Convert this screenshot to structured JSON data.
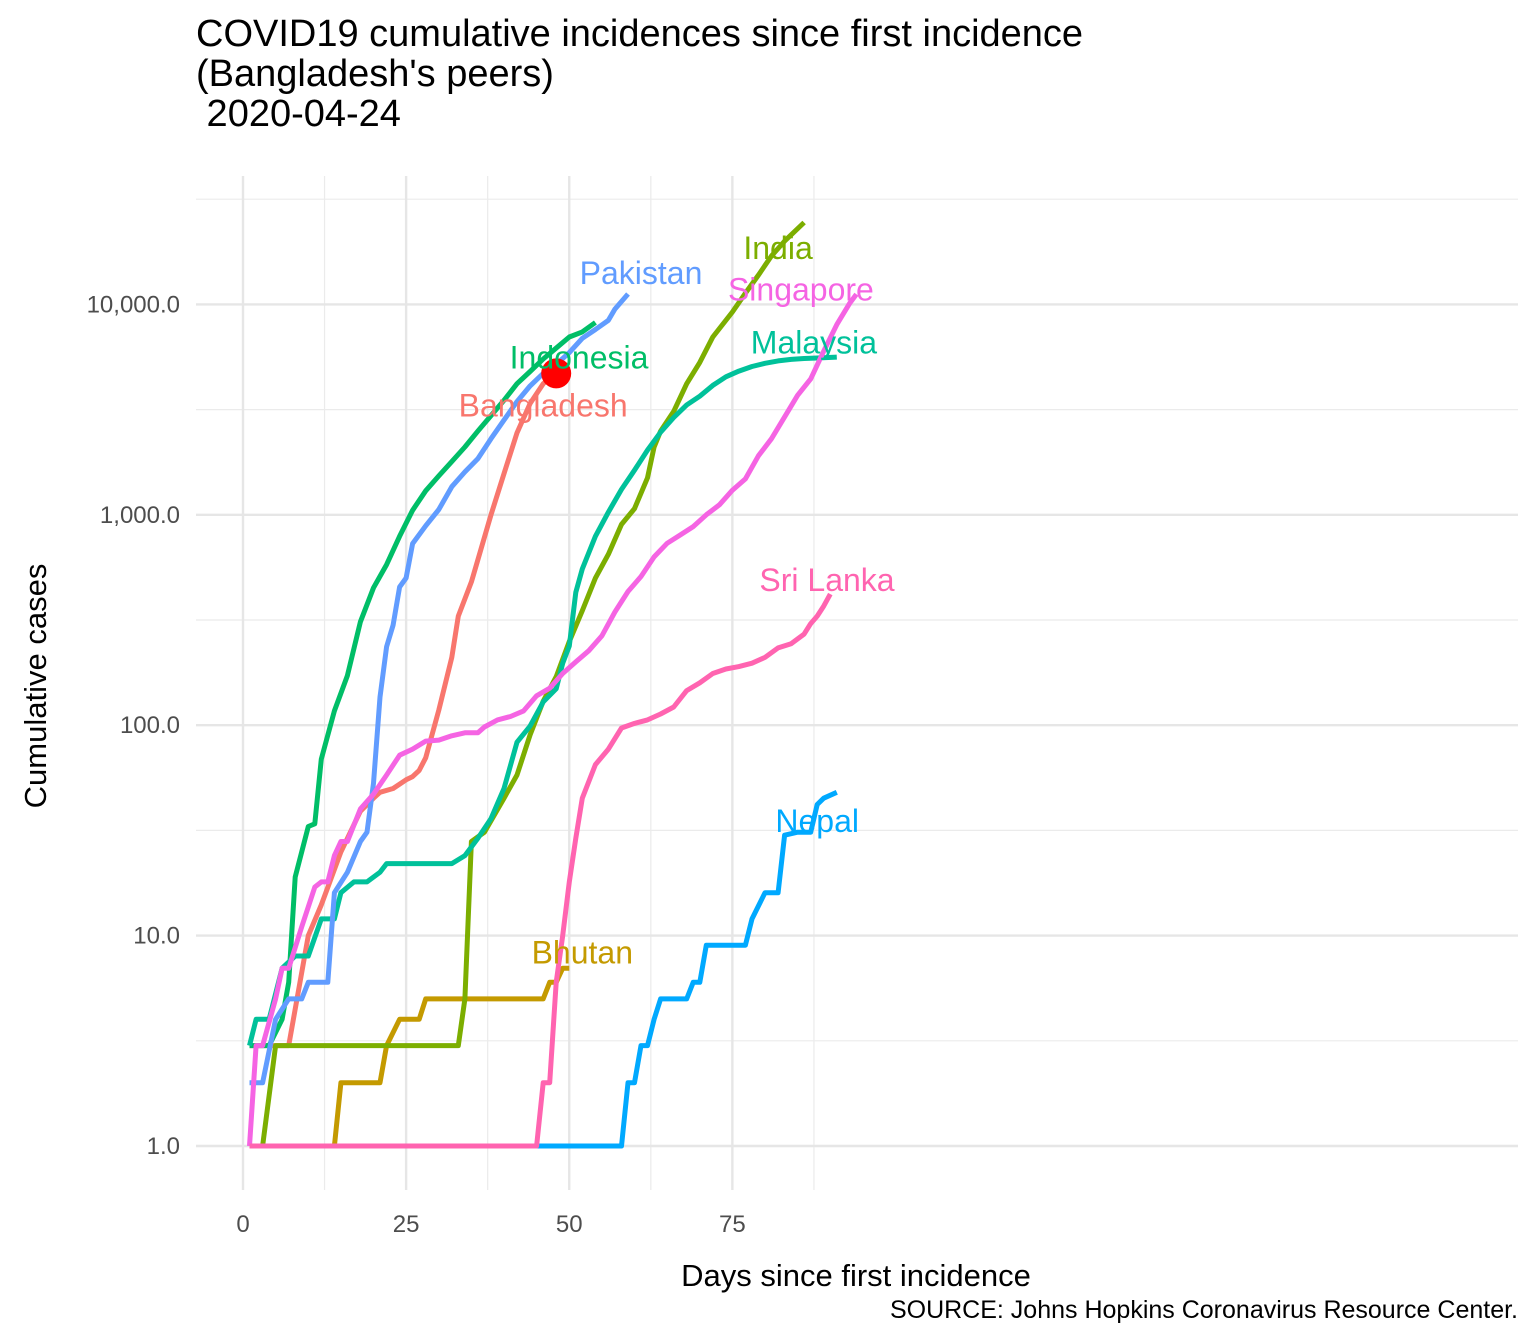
{
  "header": {
    "title_line1": "COVID19 cumulative incidences since first incidence",
    "title_line2": "(Bangladesh's peers)",
    "title_line3": " 2020-04-24"
  },
  "caption": "SOURCE: Johns Hopkins Coronavirus Resource Center.",
  "chart_data": {
    "type": "line",
    "title": "COVID19 cumulative incidences since first incidence (Bangladesh's peers) 2020-04-24",
    "xlabel": "Days since first incidence",
    "ylabel": "Cumulative cases",
    "x_scale": "linear",
    "y_scale": "log10",
    "xlim": [
      -2,
      97
    ],
    "ylim": [
      0.75,
      30000
    ],
    "x_ticks": [
      0,
      25,
      50,
      75
    ],
    "x_tick_labels": [
      "0",
      "25",
      "50",
      "75"
    ],
    "y_ticks": [
      1,
      10,
      100,
      1000,
      10000
    ],
    "y_tick_labels": [
      "1.0",
      "10.0",
      "100.0",
      "1,000.0",
      "10,000.0"
    ],
    "grid": true,
    "legend": "none (direct labels at line ends)",
    "highlight_point": {
      "series": "Bangladesh",
      "x": 48,
      "y": 4700,
      "color": "#ff0000"
    },
    "series": [
      {
        "name": "Bangladesh",
        "color": "#f8766d",
        "label_x": 46,
        "label_y": 3300,
        "points": [
          [
            1,
            3
          ],
          [
            7,
            3
          ],
          [
            10,
            10
          ],
          [
            12,
            14
          ],
          [
            15,
            25
          ],
          [
            18,
            39
          ],
          [
            20,
            45
          ],
          [
            21,
            48
          ],
          [
            23,
            50
          ],
          [
            25,
            55
          ],
          [
            26,
            57
          ],
          [
            27,
            61
          ],
          [
            28,
            70
          ],
          [
            30,
            118
          ],
          [
            32,
            210
          ],
          [
            33,
            330
          ],
          [
            35,
            480
          ],
          [
            38,
            1000
          ],
          [
            40,
            1570
          ],
          [
            42,
            2450
          ],
          [
            44,
            3380
          ],
          [
            46,
            4200
          ],
          [
            48,
            4700
          ]
        ]
      },
      {
        "name": "Bhutan",
        "color": "#c49a00",
        "label_x": 52,
        "label_y": 8.3,
        "points": [
          [
            14,
            1
          ],
          [
            15,
            2
          ],
          [
            21,
            2
          ],
          [
            22,
            3
          ],
          [
            24,
            4
          ],
          [
            27,
            4
          ],
          [
            28,
            5
          ],
          [
            46,
            5
          ],
          [
            47,
            6
          ],
          [
            48,
            6
          ],
          [
            49,
            7
          ],
          [
            50,
            7
          ]
        ]
      },
      {
        "name": "India",
        "color": "#7cae00",
        "label_x": 82,
        "label_y": 18500,
        "points": [
          [
            1,
            1
          ],
          [
            3,
            1
          ],
          [
            5,
            3
          ],
          [
            33,
            3
          ],
          [
            34,
            5
          ],
          [
            35,
            28
          ],
          [
            37,
            31
          ],
          [
            40,
            45
          ],
          [
            42,
            58
          ],
          [
            44,
            90
          ],
          [
            46,
            130
          ],
          [
            48,
            170
          ],
          [
            50,
            250
          ],
          [
            52,
            350
          ],
          [
            54,
            500
          ],
          [
            56,
            650
          ],
          [
            58,
            900
          ],
          [
            60,
            1070
          ],
          [
            62,
            1500
          ],
          [
            63,
            2100
          ],
          [
            64,
            2500
          ],
          [
            66,
            3100
          ],
          [
            68,
            4200
          ],
          [
            70,
            5300
          ],
          [
            72,
            7000
          ],
          [
            75,
            9200
          ],
          [
            77,
            11300
          ],
          [
            79,
            13800
          ],
          [
            81,
            17000
          ],
          [
            83,
            20000
          ],
          [
            86,
            24500
          ]
        ]
      },
      {
        "name": "Indonesia",
        "color": "#00be67",
        "label_x": 51.5,
        "label_y": 5600,
        "points": [
          [
            1,
            3
          ],
          [
            4,
            3
          ],
          [
            6,
            4
          ],
          [
            7,
            6
          ],
          [
            8,
            19
          ],
          [
            10,
            33
          ],
          [
            11,
            34
          ],
          [
            12,
            69
          ],
          [
            14,
            117
          ],
          [
            16,
            172
          ],
          [
            18,
            310
          ],
          [
            20,
            450
          ],
          [
            22,
            580
          ],
          [
            24,
            790
          ],
          [
            26,
            1050
          ],
          [
            28,
            1300
          ],
          [
            30,
            1530
          ],
          [
            32,
            1790
          ],
          [
            34,
            2100
          ],
          [
            36,
            2500
          ],
          [
            38,
            2960
          ],
          [
            40,
            3500
          ],
          [
            42,
            4200
          ],
          [
            44,
            4800
          ],
          [
            46,
            5500
          ],
          [
            48,
            6200
          ],
          [
            50,
            7000
          ],
          [
            52,
            7400
          ],
          [
            54,
            8200
          ]
        ]
      },
      {
        "name": "Malaysia",
        "color": "#00c19a",
        "label_x": 87.5,
        "label_y": 6600,
        "points": [
          [
            1,
            3
          ],
          [
            2,
            4
          ],
          [
            4,
            4
          ],
          [
            6,
            7
          ],
          [
            8,
            8
          ],
          [
            10,
            8
          ],
          [
            12,
            12
          ],
          [
            14,
            12
          ],
          [
            15,
            16
          ],
          [
            17,
            18
          ],
          [
            19,
            18
          ],
          [
            21,
            20
          ],
          [
            22,
            22
          ],
          [
            32,
            22
          ],
          [
            34,
            24
          ],
          [
            36,
            29
          ],
          [
            38,
            36
          ],
          [
            40,
            50
          ],
          [
            42,
            83
          ],
          [
            44,
            99
          ],
          [
            46,
            129
          ],
          [
            48,
            149
          ],
          [
            49,
            197
          ],
          [
            50,
            238
          ],
          [
            51,
            428
          ],
          [
            52,
            553
          ],
          [
            54,
            790
          ],
          [
            56,
            1030
          ],
          [
            58,
            1320
          ],
          [
            60,
            1630
          ],
          [
            62,
            2030
          ],
          [
            64,
            2470
          ],
          [
            66,
            2900
          ],
          [
            68,
            3330
          ],
          [
            70,
            3660
          ],
          [
            72,
            4120
          ],
          [
            74,
            4530
          ],
          [
            76,
            4820
          ],
          [
            78,
            5070
          ],
          [
            80,
            5250
          ],
          [
            82,
            5390
          ],
          [
            84,
            5480
          ],
          [
            86,
            5530
          ],
          [
            88,
            5560
          ],
          [
            91,
            5620
          ]
        ]
      },
      {
        "name": "Nepal",
        "color": "#00a9ff",
        "label_x": 88,
        "label_y": 35,
        "points": [
          [
            44,
            1
          ],
          [
            58,
            1
          ],
          [
            59,
            2
          ],
          [
            60,
            2
          ],
          [
            61,
            3
          ],
          [
            62,
            3
          ],
          [
            63,
            4
          ],
          [
            64,
            5
          ],
          [
            68,
            5
          ],
          [
            69,
            6
          ],
          [
            70,
            6
          ],
          [
            71,
            9
          ],
          [
            77,
            9
          ],
          [
            78,
            12
          ],
          [
            80,
            16
          ],
          [
            82,
            16
          ],
          [
            83,
            30
          ],
          [
            85,
            31
          ],
          [
            87,
            31
          ],
          [
            88,
            42
          ],
          [
            89,
            45
          ],
          [
            91,
            48
          ]
        ]
      },
      {
        "name": "Pakistan",
        "color": "#619cff",
        "label_x": 61,
        "label_y": 14100,
        "points": [
          [
            1,
            2
          ],
          [
            3,
            2
          ],
          [
            5,
            4
          ],
          [
            7,
            5
          ],
          [
            9,
            5
          ],
          [
            10,
            6
          ],
          [
            13,
            6
          ],
          [
            14,
            16
          ],
          [
            16,
            20
          ],
          [
            18,
            28
          ],
          [
            19,
            31
          ],
          [
            20,
            53
          ],
          [
            21,
            136
          ],
          [
            22,
            236
          ],
          [
            23,
            299
          ],
          [
            24,
            454
          ],
          [
            25,
            501
          ],
          [
            26,
            730
          ],
          [
            28,
            887
          ],
          [
            30,
            1060
          ],
          [
            32,
            1360
          ],
          [
            34,
            1600
          ],
          [
            36,
            1850
          ],
          [
            38,
            2300
          ],
          [
            40,
            2818
          ],
          [
            42,
            3450
          ],
          [
            44,
            4100
          ],
          [
            46,
            4700
          ],
          [
            48,
            5200
          ],
          [
            50,
            5900
          ],
          [
            52,
            6900
          ],
          [
            54,
            7600
          ],
          [
            56,
            8400
          ],
          [
            57,
            9500
          ],
          [
            59,
            11200
          ]
        ]
      },
      {
        "name": "Singapore",
        "color": "#f564e3",
        "label_x": 85.5,
        "label_y": 11800,
        "points": [
          [
            1,
            1
          ],
          [
            2,
            3
          ],
          [
            3,
            3
          ],
          [
            5,
            5
          ],
          [
            6,
            7
          ],
          [
            7,
            7
          ],
          [
            9,
            11
          ],
          [
            11,
            17
          ],
          [
            12,
            18
          ],
          [
            13,
            18
          ],
          [
            14,
            24
          ],
          [
            15,
            28
          ],
          [
            16,
            28
          ],
          [
            18,
            40
          ],
          [
            20,
            47
          ],
          [
            22,
            58
          ],
          [
            24,
            72
          ],
          [
            26,
            77
          ],
          [
            28,
            84
          ],
          [
            30,
            85
          ],
          [
            32,
            89
          ],
          [
            34,
            92
          ],
          [
            36,
            92
          ],
          [
            37,
            98
          ],
          [
            39,
            106
          ],
          [
            41,
            110
          ],
          [
            43,
            117
          ],
          [
            45,
            138
          ],
          [
            47,
            150
          ],
          [
            49,
            176
          ],
          [
            51,
            200
          ],
          [
            53,
            226
          ],
          [
            55,
            266
          ],
          [
            57,
            345
          ],
          [
            59,
            432
          ],
          [
            61,
            509
          ],
          [
            63,
            631
          ],
          [
            65,
            732
          ],
          [
            67,
            802
          ],
          [
            69,
            879
          ],
          [
            71,
            1000
          ],
          [
            73,
            1114
          ],
          [
            75,
            1309
          ],
          [
            77,
            1481
          ],
          [
            79,
            1910
          ],
          [
            81,
            2299
          ],
          [
            83,
            2918
          ],
          [
            85,
            3699
          ],
          [
            87,
            4427
          ],
          [
            89,
            5992
          ],
          [
            91,
            8014
          ],
          [
            93,
            10141
          ],
          [
            94,
            11178
          ]
        ]
      },
      {
        "name": "Sri Lanka",
        "color": "#ff64b0",
        "label_x": 89.5,
        "label_y": 490,
        "points": [
          [
            1,
            1
          ],
          [
            45,
            1
          ],
          [
            46,
            2
          ],
          [
            47,
            2
          ],
          [
            48,
            6
          ],
          [
            49,
            10
          ],
          [
            50,
            18
          ],
          [
            51,
            29
          ],
          [
            52,
            45
          ],
          [
            54,
            65
          ],
          [
            56,
            77
          ],
          [
            58,
            97
          ],
          [
            60,
            102
          ],
          [
            62,
            106
          ],
          [
            64,
            113
          ],
          [
            66,
            122
          ],
          [
            68,
            146
          ],
          [
            70,
            159
          ],
          [
            72,
            176
          ],
          [
            74,
            185
          ],
          [
            76,
            190
          ],
          [
            78,
            197
          ],
          [
            80,
            210
          ],
          [
            82,
            233
          ],
          [
            84,
            244
          ],
          [
            86,
            271
          ],
          [
            87,
            304
          ],
          [
            88,
            330
          ],
          [
            89,
            368
          ],
          [
            90,
            420
          ]
        ]
      }
    ]
  }
}
